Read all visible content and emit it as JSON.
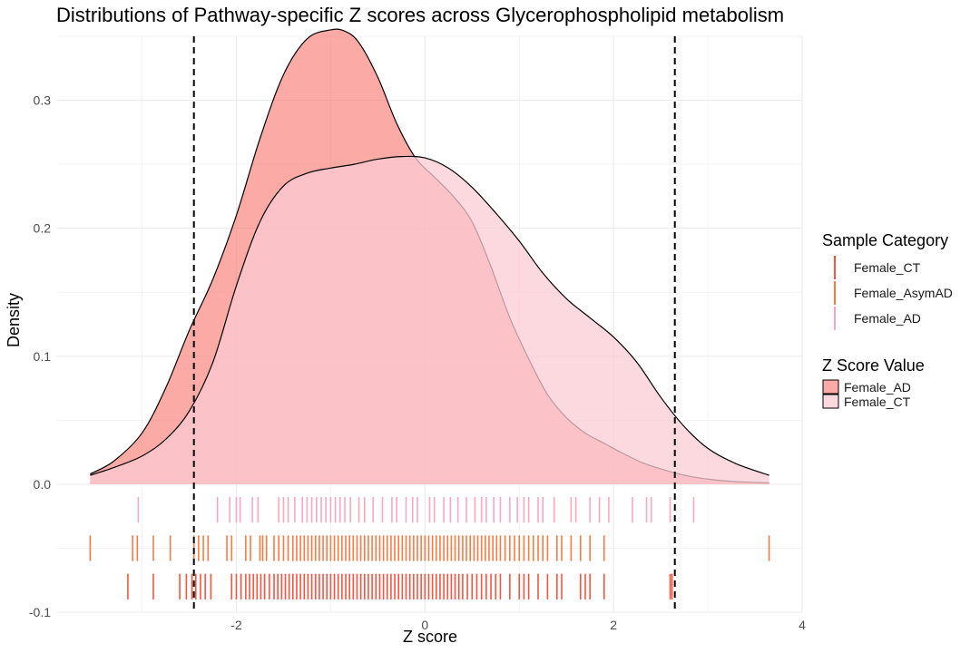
{
  "chart_data": {
    "type": "density",
    "title": "Distributions of Pathway-specific Z scores across Glycerophospholipid metabolism",
    "xlabel": "Z score",
    "ylabel": "Density",
    "xlim": [
      -3.9,
      4.0
    ],
    "ylim": [
      -0.1,
      0.35
    ],
    "x_ticks": [
      -2,
      0,
      2,
      4
    ],
    "x_tick_labels": [
      "-2",
      "0",
      "2",
      "4"
    ],
    "y_ticks": [
      -0.1,
      0.0,
      0.1,
      0.2,
      0.3
    ],
    "y_tick_labels": [
      "-0.1",
      "0.0",
      "0.1",
      "0.2",
      "0.3"
    ],
    "grid": true,
    "vlines": [
      {
        "x": -2.45,
        "style": "dashed",
        "color": "#000000"
      },
      {
        "x": 2.65,
        "style": "dashed",
        "color": "#000000"
      }
    ],
    "density_series": [
      {
        "name": "Female_AD",
        "fill": "#f8766d",
        "fill_opacity": 0.62,
        "x": [
          -3.55,
          -3.3,
          -3.0,
          -2.75,
          -2.5,
          -2.25,
          -2.0,
          -1.75,
          -1.5,
          -1.25,
          -1.0,
          -0.85,
          -0.7,
          -0.5,
          -0.3,
          -0.1,
          0.1,
          0.3,
          0.5,
          0.7,
          0.9,
          1.1,
          1.3,
          1.5,
          1.7,
          1.9,
          2.1,
          2.3,
          2.5,
          2.75,
          3.0,
          3.3,
          3.65
        ],
        "y": [
          0.008,
          0.018,
          0.04,
          0.075,
          0.12,
          0.16,
          0.21,
          0.27,
          0.32,
          0.348,
          0.355,
          0.354,
          0.345,
          0.318,
          0.282,
          0.255,
          0.24,
          0.225,
          0.205,
          0.17,
          0.13,
          0.098,
          0.07,
          0.052,
          0.04,
          0.032,
          0.024,
          0.017,
          0.012,
          0.007,
          0.004,
          0.002,
          0.001
        ]
      },
      {
        "name": "Female_CT",
        "fill": "#fbcbd4",
        "fill_opacity": 0.75,
        "x": [
          -3.55,
          -3.3,
          -3.0,
          -2.75,
          -2.5,
          -2.25,
          -2.0,
          -1.75,
          -1.5,
          -1.25,
          -1.0,
          -0.75,
          -0.5,
          -0.25,
          0.0,
          0.25,
          0.5,
          0.75,
          1.0,
          1.25,
          1.5,
          1.75,
          2.0,
          2.25,
          2.5,
          2.75,
          3.0,
          3.3,
          3.65
        ],
        "y": [
          0.007,
          0.013,
          0.022,
          0.035,
          0.057,
          0.095,
          0.155,
          0.205,
          0.233,
          0.243,
          0.247,
          0.25,
          0.254,
          0.256,
          0.255,
          0.247,
          0.232,
          0.212,
          0.19,
          0.165,
          0.145,
          0.13,
          0.115,
          0.095,
          0.068,
          0.045,
          0.028,
          0.016,
          0.007
        ]
      }
    ],
    "rug_series": [
      {
        "name": "Female_AD",
        "color": "#f9a8c0",
        "y_top": -0.01,
        "y_bottom": -0.03,
        "x": [
          -3.04,
          -2.2,
          -2.07,
          -2.0,
          -1.96,
          -1.83,
          -1.77,
          -1.55,
          -1.5,
          -1.45,
          -1.38,
          -1.3,
          -1.25,
          -1.2,
          -1.15,
          -1.1,
          -1.05,
          -1.0,
          -0.95,
          -0.9,
          -0.85,
          -0.79,
          -0.7,
          -0.64,
          -0.55,
          -0.45,
          -0.35,
          -0.3,
          -0.2,
          -0.13,
          -0.08,
          0.05,
          0.1,
          0.2,
          0.27,
          0.35,
          0.44,
          0.53,
          0.6,
          0.65,
          0.73,
          0.8,
          0.9,
          0.98,
          1.05,
          1.1,
          1.2,
          1.25,
          1.37,
          1.55,
          1.6,
          1.75,
          1.85,
          1.95,
          2.2,
          2.35,
          2.4,
          2.6,
          2.85
        ]
      },
      {
        "name": "Female_AsymAD",
        "color": "#fb7a44",
        "y_top": -0.04,
        "y_bottom": -0.06,
        "x": [
          -3.55,
          -3.1,
          -3.05,
          -2.88,
          -2.7,
          -2.45,
          -2.4,
          -2.35,
          -2.3,
          -2.1,
          -2.05,
          -1.9,
          -1.85,
          -1.75,
          -1.72,
          -1.68,
          -1.6,
          -1.55,
          -1.5,
          -1.45,
          -1.4,
          -1.36,
          -1.32,
          -1.28,
          -1.24,
          -1.2,
          -1.16,
          -1.12,
          -1.08,
          -1.04,
          -1.0,
          -0.96,
          -0.92,
          -0.88,
          -0.84,
          -0.8,
          -0.76,
          -0.72,
          -0.68,
          -0.64,
          -0.6,
          -0.56,
          -0.52,
          -0.48,
          -0.44,
          -0.4,
          -0.36,
          -0.32,
          -0.28,
          -0.24,
          -0.2,
          -0.16,
          -0.12,
          -0.08,
          -0.04,
          0.0,
          0.04,
          0.08,
          0.12,
          0.16,
          0.2,
          0.24,
          0.28,
          0.32,
          0.36,
          0.4,
          0.44,
          0.48,
          0.52,
          0.56,
          0.6,
          0.64,
          0.68,
          0.72,
          0.76,
          0.8,
          0.85,
          0.9,
          0.95,
          1.0,
          1.05,
          1.1,
          1.15,
          1.2,
          1.25,
          1.3,
          1.4,
          1.45,
          1.55,
          1.65,
          1.75,
          1.9,
          3.65
        ]
      },
      {
        "name": "Female_CT",
        "color": "#f95340",
        "y_top": -0.07,
        "y_bottom": -0.09,
        "x": [
          -3.15,
          -2.88,
          -2.6,
          -2.53,
          -2.47,
          -2.43,
          -2.38,
          -2.33,
          -2.27,
          -2.05,
          -2.0,
          -1.95,
          -1.9,
          -1.86,
          -1.82,
          -1.78,
          -1.74,
          -1.7,
          -1.65,
          -1.6,
          -1.56,
          -1.52,
          -1.48,
          -1.44,
          -1.4,
          -1.36,
          -1.32,
          -1.28,
          -1.24,
          -1.2,
          -1.16,
          -1.12,
          -1.08,
          -1.04,
          -1.0,
          -0.96,
          -0.92,
          -0.88,
          -0.84,
          -0.8,
          -0.76,
          -0.72,
          -0.68,
          -0.64,
          -0.6,
          -0.56,
          -0.52,
          -0.48,
          -0.44,
          -0.4,
          -0.36,
          -0.32,
          -0.28,
          -0.24,
          -0.2,
          -0.16,
          -0.12,
          -0.08,
          -0.04,
          0.0,
          0.04,
          0.08,
          0.12,
          0.16,
          0.2,
          0.24,
          0.28,
          0.32,
          0.36,
          0.4,
          0.45,
          0.5,
          0.55,
          0.6,
          0.65,
          0.7,
          0.75,
          0.8,
          0.9,
          1.0,
          1.05,
          1.1,
          1.2,
          1.3,
          1.4,
          1.45,
          1.65,
          1.7,
          1.75,
          1.9,
          2.6,
          2.62
        ]
      }
    ],
    "legends": [
      {
        "title": "Sample Category",
        "kind": "line",
        "entries": [
          {
            "label": "Female_CT",
            "color": "#f95340"
          },
          {
            "label": "Female_AsymAD",
            "color": "#fb7a44"
          },
          {
            "label": "Female_AD",
            "color": "#f9a8c0"
          }
        ]
      },
      {
        "title": "Z Score Value",
        "kind": "fill",
        "entries": [
          {
            "label": "Female_AD",
            "color": "#f8766d",
            "opacity": 0.62
          },
          {
            "label": "Female_CT",
            "color": "#fbcbd4",
            "opacity": 0.75
          }
        ]
      }
    ],
    "legend_position": "right"
  }
}
